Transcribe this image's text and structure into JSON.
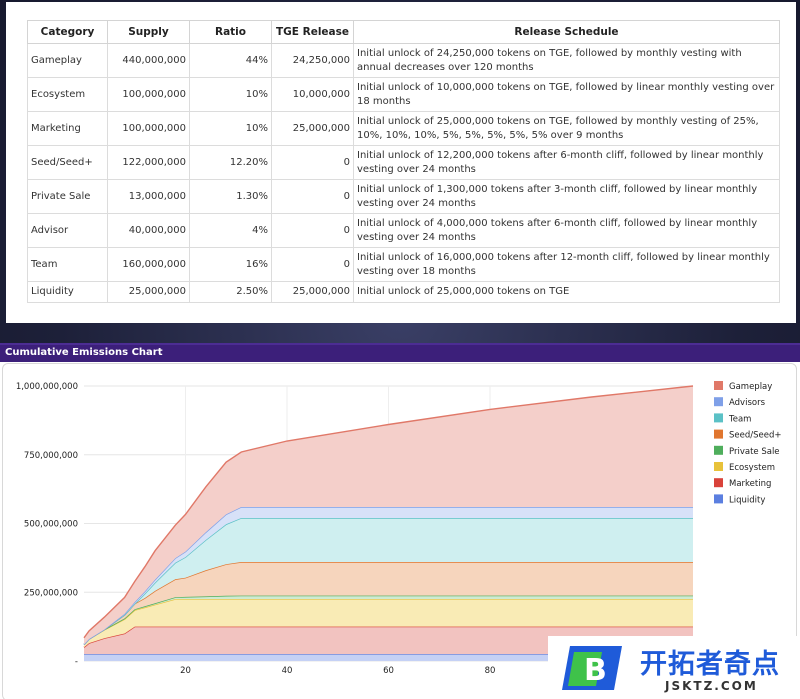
{
  "table": {
    "headers": [
      "Category",
      "Supply",
      "Ratio",
      "TGE Release",
      "Release Schedule"
    ],
    "rows": [
      [
        "Gameplay",
        "440,000,000",
        "44%",
        "24,250,000",
        "Initial unlock of 24,250,000 tokens on TGE, followed by monthly vesting with annual decreases over 120 months"
      ],
      [
        "Ecosystem",
        "100,000,000",
        "10%",
        "10,000,000",
        "Initial unlock of 10,000,000 tokens on TGE, followed by linear monthly vesting over 18 months"
      ],
      [
        "Marketing",
        "100,000,000",
        "10%",
        "25,000,000",
        "Initial unlock of 25,000,000 tokens on TGE, followed by monthly vesting of 25%, 10%, 10%, 10%, 5%, 5%, 5%, 5%, 5% over 9 months"
      ],
      [
        "Seed/Seed+",
        "122,000,000",
        "12.20%",
        "0",
        "Initial unlock of 12,200,000 tokens after 6-month cliff, followed by linear monthly vesting over 24 months"
      ],
      [
        "Private Sale",
        "13,000,000",
        "1.30%",
        "0",
        "Initial unlock of 1,300,000 tokens after 3-month cliff, followed by linear monthly vesting over 24 months"
      ],
      [
        "Advisor",
        "40,000,000",
        "4%",
        "0",
        "Initial unlock of 4,000,000 tokens after 6-month cliff, followed by linear monthly vesting over 24 months"
      ],
      [
        "Team",
        "160,000,000",
        "16%",
        "0",
        "Initial unlock of 16,000,000 tokens after 12-month cliff, followed by linear monthly vesting over 18 months"
      ],
      [
        "Liquidity",
        "25,000,000",
        "2.50%",
        "25,000,000",
        "Initial unlock of 25,000,000 tokens on TGE"
      ]
    ]
  },
  "chart_header": {
    "title": "Cumulative Emissions Chart"
  },
  "chart_data": {
    "type": "area",
    "stacked": true,
    "title": "Cumulative Emissions Chart",
    "xlabel": "",
    "ylabel": "",
    "x": [
      0,
      1,
      4,
      8,
      10,
      12,
      14,
      18,
      20,
      24,
      28,
      31,
      40,
      60,
      80,
      100,
      120
    ],
    "xlim": [
      0,
      120
    ],
    "ylim": [
      0,
      1000000000
    ],
    "x_ticks": [
      20,
      40,
      60,
      80
    ],
    "y_ticks": [
      0,
      250000000,
      500000000,
      750000000,
      1000000000
    ],
    "y_tick_labels": [
      "-",
      "250,000,000",
      "500,000,000",
      "750,000,000",
      "1,000,000,000"
    ],
    "grid": true,
    "legend_position": "right",
    "series": [
      {
        "name": "Liquidity",
        "color": "#5b7fe0",
        "fill": "#c5d1f5",
        "values": [
          25000000,
          25000000,
          25000000,
          25000000,
          25000000,
          25000000,
          25000000,
          25000000,
          25000000,
          25000000,
          25000000,
          25000000,
          25000000,
          25000000,
          25000000,
          25000000,
          25000000
        ]
      },
      {
        "name": "Marketing",
        "color": "#d9423a",
        "fill": "#f2c3c0",
        "values": [
          25000000,
          40000000,
          58000000,
          75000000,
          100000000,
          100000000,
          100000000,
          100000000,
          100000000,
          100000000,
          100000000,
          100000000,
          100000000,
          100000000,
          100000000,
          100000000,
          100000000
        ]
      },
      {
        "name": "Ecosystem",
        "color": "#e8c23a",
        "fill": "#f9ebb5",
        "values": [
          10000000,
          15000000,
          30000000,
          52000000,
          60000000,
          70000000,
          80000000,
          100000000,
          100000000,
          100000000,
          100000000,
          100000000,
          100000000,
          100000000,
          100000000,
          100000000,
          100000000
        ]
      },
      {
        "name": "Private Sale",
        "color": "#4fae5c",
        "fill": "#cfead2",
        "values": [
          0,
          0,
          1300000,
          3000000,
          3500000,
          4000000,
          5000000,
          7000000,
          8000000,
          10000000,
          12000000,
          13000000,
          13000000,
          13000000,
          13000000,
          13000000,
          13000000
        ]
      },
      {
        "name": "Seed/Seed+",
        "color": "#e0762f",
        "fill": "#f6d5bd",
        "values": [
          0,
          0,
          0,
          12200000,
          20000000,
          30000000,
          45000000,
          65000000,
          70000000,
          95000000,
          115000000,
          122000000,
          122000000,
          122000000,
          122000000,
          122000000,
          122000000
        ]
      },
      {
        "name": "Team",
        "color": "#5bc1c6",
        "fill": "#cfeff0",
        "values": [
          0,
          0,
          0,
          0,
          0,
          16000000,
          30000000,
          60000000,
          75000000,
          110000000,
          145000000,
          160000000,
          160000000,
          160000000,
          160000000,
          160000000,
          160000000
        ]
      },
      {
        "name": "Advisors",
        "color": "#7fa0e8",
        "fill": "#d7e1f8",
        "values": [
          0,
          0,
          0,
          4000000,
          6000000,
          8000000,
          11000000,
          17000000,
          20000000,
          28000000,
          36000000,
          40000000,
          40000000,
          40000000,
          40000000,
          40000000,
          40000000
        ]
      },
      {
        "name": "Gameplay",
        "color": "#e07868",
        "fill": "#f4cfca",
        "values": [
          24250000,
          30000000,
          45000000,
          60000000,
          75000000,
          90000000,
          105000000,
          120000000,
          135000000,
          165000000,
          190000000,
          200000000,
          240000000,
          300000000,
          355000000,
          400000000,
          440000000
        ]
      }
    ],
    "legend_order": [
      "Gameplay",
      "Advisors",
      "Team",
      "Seed/Seed+",
      "Private Sale",
      "Ecosystem",
      "Marketing",
      "Liquidity"
    ]
  },
  "watermark": {
    "main": "开拓者奇点",
    "sub": "JSKTZ.COM",
    "logo_letter": "B"
  }
}
